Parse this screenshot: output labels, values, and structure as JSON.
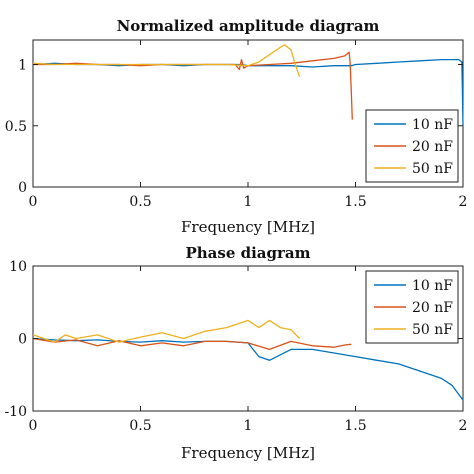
{
  "colors": {
    "10 nF": "#0072BD",
    "20 nF": "#D95319",
    "50 nF": "#EDB120"
  },
  "chart_data": [
    {
      "type": "line",
      "title": "Normalized amplitude diagram",
      "xlabel": "Frequency [MHz]",
      "ylabel": "",
      "xlim": [
        0,
        2
      ],
      "ylim": [
        0,
        1.2
      ],
      "xticks": [
        "0",
        "0.5",
        "1",
        "1.5",
        "2"
      ],
      "yticks": [
        "0",
        "0.5",
        "1"
      ],
      "legend": {
        "position": "bottom-right",
        "entries": [
          "10 nF",
          "20 nF",
          "50 nF"
        ]
      },
      "grid": false,
      "series": [
        {
          "name": "10 nF",
          "color": "#0072BD",
          "x": [
            0.0,
            0.1,
            0.2,
            0.3,
            0.4,
            0.5,
            0.6,
            0.7,
            0.8,
            0.9,
            0.97,
            1.0,
            1.1,
            1.2,
            1.3,
            1.4,
            1.48,
            1.5,
            1.6,
            1.7,
            1.8,
            1.9,
            1.98,
            1.995,
            2.0
          ],
          "y": [
            1.0,
            1.01,
            1.0,
            1.0,
            0.99,
            1.0,
            1.0,
            0.99,
            1.0,
            1.0,
            1.0,
            0.99,
            0.99,
            0.99,
            0.98,
            0.99,
            0.99,
            1.0,
            1.01,
            1.02,
            1.03,
            1.04,
            1.04,
            1.02,
            0.5
          ]
        },
        {
          "name": "20 nF",
          "color": "#D95319",
          "x": [
            0.0,
            0.1,
            0.2,
            0.3,
            0.4,
            0.5,
            0.6,
            0.7,
            0.8,
            0.9,
            0.94,
            0.96,
            0.97,
            0.98,
            1.0,
            1.1,
            1.2,
            1.3,
            1.4,
            1.45,
            1.47,
            1.475,
            1.48,
            1.485
          ],
          "y": [
            1.0,
            1.0,
            1.01,
            1.0,
            1.0,
            0.99,
            1.0,
            1.0,
            1.0,
            1.0,
            1.0,
            0.96,
            1.04,
            0.97,
            0.99,
            1.0,
            1.01,
            1.03,
            1.05,
            1.07,
            1.1,
            1.02,
            0.8,
            0.55
          ]
        },
        {
          "name": "50 nF",
          "color": "#EDB120",
          "x": [
            0.0,
            0.1,
            0.2,
            0.3,
            0.4,
            0.5,
            0.6,
            0.7,
            0.8,
            0.9,
            1.0,
            1.05,
            1.1,
            1.15,
            1.17,
            1.2,
            1.22,
            1.24
          ],
          "y": [
            1.01,
            1.0,
            1.0,
            1.0,
            1.0,
            1.0,
            1.0,
            1.0,
            1.0,
            1.0,
            0.99,
            1.02,
            1.08,
            1.14,
            1.16,
            1.12,
            1.0,
            0.9
          ]
        }
      ]
    },
    {
      "type": "line",
      "title": "Phase diagram",
      "xlabel": "Frequency [MHz]",
      "ylabel": "",
      "xlim": [
        0,
        2
      ],
      "ylim": [
        -10,
        10
      ],
      "xticks": [
        "0",
        "0.5",
        "1",
        "1.5",
        "2"
      ],
      "yticks": [
        "-10",
        "0",
        "10"
      ],
      "legend": {
        "position": "top-right",
        "entries": [
          "10 nF",
          "20 nF",
          "50 nF"
        ]
      },
      "grid": false,
      "series": [
        {
          "name": "10 nF",
          "color": "#0072BD",
          "x": [
            0.0,
            0.1,
            0.2,
            0.3,
            0.4,
            0.5,
            0.6,
            0.7,
            0.8,
            0.9,
            1.0,
            1.05,
            1.1,
            1.2,
            1.3,
            1.4,
            1.5,
            1.6,
            1.7,
            1.8,
            1.9,
            1.95,
            2.0
          ],
          "y": [
            0.0,
            -0.2,
            -0.3,
            -0.2,
            -0.4,
            -0.5,
            -0.3,
            -0.5,
            -0.4,
            -0.4,
            -0.6,
            -2.5,
            -3.0,
            -1.5,
            -1.5,
            -2.0,
            -2.5,
            -3.0,
            -3.5,
            -4.5,
            -5.5,
            -6.5,
            -8.5
          ]
        },
        {
          "name": "20 nF",
          "color": "#D95319",
          "x": [
            0.0,
            0.1,
            0.2,
            0.3,
            0.4,
            0.5,
            0.6,
            0.7,
            0.8,
            0.9,
            1.0,
            1.1,
            1.2,
            1.3,
            1.4,
            1.45,
            1.48
          ],
          "y": [
            0.0,
            -0.5,
            -0.2,
            -1.0,
            -0.3,
            -1.0,
            -0.6,
            -1.0,
            -0.4,
            -0.4,
            -0.6,
            -1.5,
            -0.4,
            -1.0,
            -1.2,
            -0.9,
            -0.8
          ]
        },
        {
          "name": "50 nF",
          "color": "#EDB120",
          "x": [
            0.0,
            0.05,
            0.1,
            0.15,
            0.2,
            0.3,
            0.4,
            0.5,
            0.6,
            0.7,
            0.8,
            0.9,
            1.0,
            1.05,
            1.1,
            1.15,
            1.2,
            1.24
          ],
          "y": [
            0.5,
            0.0,
            -0.5,
            0.5,
            0.0,
            0.5,
            -0.5,
            0.2,
            0.8,
            0.0,
            1.0,
            1.5,
            2.5,
            1.5,
            2.5,
            1.5,
            1.2,
            0.0
          ]
        }
      ]
    }
  ]
}
